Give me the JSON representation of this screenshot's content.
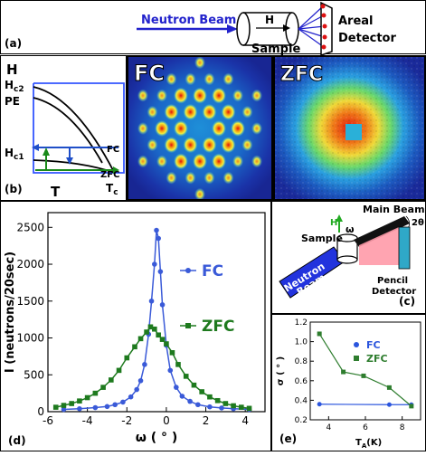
{
  "panel_a": {
    "label": "(a)",
    "beam_label": "Neutron Beam",
    "field_label": "H",
    "sample_label": "Sample",
    "detector_label_line1": "Areal",
    "detector_label_line2": "Detector",
    "colors": {
      "beam": "#2222cc",
      "detector": "#2222cc",
      "dots": "#dd1111"
    }
  },
  "panel_b": {
    "label": "(b)",
    "y_axis_label": "H",
    "x_axis_label": "T",
    "hc2_label": "H",
    "hc2_sub": "c2",
    "pe_label": "PE",
    "hc1_label": "H",
    "hc1_sub": "c1",
    "tc_label": "T",
    "tc_sub": "c",
    "fc_label": "FC",
    "zfc_label": "ZFC",
    "colors": {
      "fc_arrow": "#1f4fc8",
      "zfc_arrow": "#1a8a1a",
      "frame": "#3355ff"
    }
  },
  "heatmaps": {
    "fc_title": "FC",
    "zfc_title": "ZFC"
  },
  "panel_c": {
    "label": "(c)",
    "main_beam": "Main Beam",
    "sample": "Sample",
    "h_label": "H",
    "omega_label": "ω",
    "two_theta": "2θ",
    "beam_line1": "Neutron",
    "beam_line2": "Beam",
    "pencil_line1": "Pencil",
    "pencil_line2": "Detector",
    "colors": {
      "beam": "#2233dd",
      "detector": "#2fa8c8",
      "h_arrow": "#22aa22"
    }
  },
  "panel_d": {
    "label": "(d)"
  },
  "panel_e": {
    "label": "(e)"
  },
  "chart_data": [
    {
      "type": "line",
      "ylabel": "I (neutrons/20sec)",
      "xlabel": "ω ( ° )",
      "xlim": [
        -6,
        5
      ],
      "ylim": [
        0,
        2700
      ],
      "xticks": [
        "-6",
        "-4",
        "-2",
        "0",
        "2",
        "4"
      ],
      "yticks": [
        "0",
        "500",
        "1000",
        "1500",
        "2000",
        "2500"
      ],
      "series": [
        {
          "name": "FC",
          "color": "#3a5ad8",
          "marker": "circle",
          "x": [
            -5.2,
            -4.4,
            -3.6,
            -3.0,
            -2.6,
            -2.2,
            -1.8,
            -1.5,
            -1.3,
            -1.1,
            -0.9,
            -0.75,
            -0.6,
            -0.5,
            -0.4,
            -0.3,
            -0.2,
            0.0,
            0.2,
            0.5,
            0.8,
            1.2,
            1.6,
            2.2,
            2.8,
            3.4,
            4.2
          ],
          "values": [
            30,
            40,
            55,
            70,
            95,
            130,
            200,
            300,
            420,
            640,
            1050,
            1500,
            2000,
            2460,
            2350,
            1900,
            1450,
            900,
            560,
            330,
            210,
            140,
            95,
            65,
            50,
            40,
            30
          ]
        },
        {
          "name": "ZFC",
          "color": "#1e7a1e",
          "marker": "square",
          "x": [
            -5.6,
            -5.2,
            -4.8,
            -4.4,
            -4.0,
            -3.6,
            -3.2,
            -2.8,
            -2.4,
            -2.0,
            -1.6,
            -1.3,
            -1.0,
            -0.8,
            -0.6,
            -0.4,
            -0.2,
            0.0,
            0.3,
            0.6,
            1.0,
            1.4,
            1.8,
            2.2,
            2.6,
            3.0,
            3.4,
            3.8,
            4.2
          ],
          "values": [
            60,
            85,
            110,
            145,
            190,
            250,
            330,
            430,
            560,
            730,
            880,
            990,
            1080,
            1150,
            1120,
            1040,
            980,
            920,
            800,
            640,
            480,
            360,
            270,
            200,
            150,
            110,
            80,
            60,
            45
          ]
        }
      ]
    },
    {
      "type": "line",
      "ylabel": "σ ( ° )",
      "xlabel": "T",
      "xlabel_sub": "A",
      "xlabel_unit": "(K)",
      "xlim": [
        3,
        9
      ],
      "ylim": [
        0.2,
        1.2
      ],
      "xticks": [
        "4",
        "6",
        "8"
      ],
      "yticks": [
        "0.2",
        "0.4",
        "0.6",
        "0.8",
        "1.0",
        "1.2"
      ],
      "series": [
        {
          "name": "FC",
          "color": "#2b55dd",
          "marker": "circle",
          "x": [
            3.5,
            7.3,
            8.5
          ],
          "values": [
            0.36,
            0.355,
            0.355
          ]
        },
        {
          "name": "ZFC",
          "color": "#2e7d2e",
          "marker": "square",
          "x": [
            3.5,
            4.8,
            5.9,
            7.3,
            8.5
          ],
          "values": [
            1.08,
            0.69,
            0.65,
            0.53,
            0.34
          ]
        }
      ]
    }
  ]
}
